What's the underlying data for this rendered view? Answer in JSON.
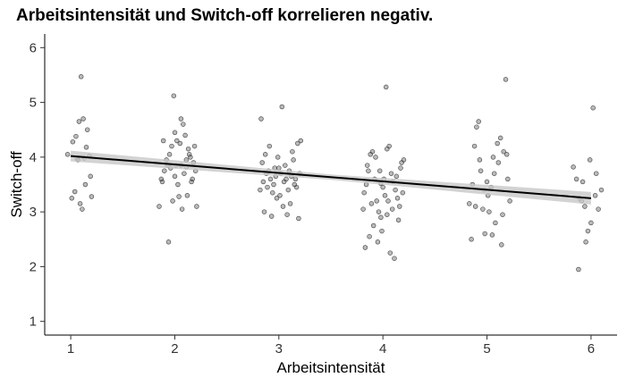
{
  "chart_data": {
    "type": "scatter",
    "title": "Arbeitsintensität und Switch-off korrelieren negativ.",
    "xlabel": "Arbeitsintensität",
    "ylabel": "Switch-off",
    "xlim": [
      0.75,
      6.25
    ],
    "ylim": [
      0.75,
      6.25
    ],
    "x_ticks": [
      1,
      2,
      3,
      4,
      5,
      6
    ],
    "y_ticks": [
      1,
      2,
      3,
      4,
      5,
      6
    ],
    "grid": false,
    "point_color": "#3a3a3a",
    "regression_line": {
      "x": [
        1,
        6
      ],
      "y": [
        4.02,
        3.25
      ],
      "color": "#000000",
      "band_color": "#c8c8c8"
    },
    "series": [
      {
        "points": [
          [
            0.97,
            4.05
          ],
          [
            1.02,
            4.28
          ],
          [
            1.05,
            4.38
          ],
          [
            1.08,
            4.65
          ],
          [
            1.12,
            4.7
          ],
          [
            1.16,
            4.5
          ],
          [
            1.1,
            5.47
          ],
          [
            1.04,
            3.37
          ],
          [
            1.07,
            3.95
          ],
          [
            1.13,
            3.98
          ],
          [
            1.18,
            4.02
          ],
          [
            1.01,
            3.25
          ],
          [
            1.14,
            3.5
          ],
          [
            1.19,
            3.65
          ],
          [
            1.11,
            3.05
          ],
          [
            1.2,
            3.28
          ],
          [
            1.09,
            3.15
          ],
          [
            1.06,
            3.98
          ],
          [
            1.15,
            4.18
          ],
          [
            1.85,
            3.1
          ],
          [
            1.88,
            3.55
          ],
          [
            1.9,
            3.75
          ],
          [
            1.93,
            3.85
          ],
          [
            1.95,
            4.05
          ],
          [
            1.97,
            4.2
          ],
          [
            2.0,
            4.45
          ],
          [
            2.02,
            4.3
          ],
          [
            2.05,
            4.25
          ],
          [
            2.08,
            4.6
          ],
          [
            2.1,
            4.4
          ],
          [
            2.13,
            4.15
          ],
          [
            2.15,
            4.0
          ],
          [
            2.18,
            3.9
          ],
          [
            2.2,
            3.75
          ],
          [
            1.87,
            3.6
          ],
          [
            1.92,
            3.95
          ],
          [
            1.96,
            3.8
          ],
          [
            2.0,
            3.65
          ],
          [
            2.03,
            3.5
          ],
          [
            2.06,
            3.85
          ],
          [
            2.09,
            3.7
          ],
          [
            2.12,
            3.3
          ],
          [
            2.16,
            3.55
          ],
          [
            2.19,
            4.2
          ],
          [
            1.99,
            5.12
          ],
          [
            1.94,
            2.45
          ],
          [
            2.04,
            3.28
          ],
          [
            2.07,
            3.05
          ],
          [
            2.11,
            3.95
          ],
          [
            2.14,
            4.05
          ],
          [
            2.17,
            3.6
          ],
          [
            1.89,
            4.3
          ],
          [
            2.01,
            3.85
          ],
          [
            2.21,
            3.1
          ],
          [
            2.06,
            4.7
          ],
          [
            1.98,
            3.2
          ],
          [
            2.11,
            3.82
          ],
          [
            2.82,
            3.4
          ],
          [
            2.85,
            3.55
          ],
          [
            2.88,
            3.7
          ],
          [
            2.9,
            3.75
          ],
          [
            2.92,
            3.6
          ],
          [
            2.95,
            3.5
          ],
          [
            2.97,
            3.65
          ],
          [
            3.0,
            3.8
          ],
          [
            3.02,
            3.7
          ],
          [
            3.05,
            3.55
          ],
          [
            3.07,
            3.6
          ],
          [
            3.1,
            3.75
          ],
          [
            3.12,
            3.65
          ],
          [
            3.15,
            3.5
          ],
          [
            3.17,
            3.45
          ],
          [
            3.2,
            3.7
          ],
          [
            2.84,
            3.9
          ],
          [
            2.87,
            4.05
          ],
          [
            2.91,
            4.2
          ],
          [
            2.94,
            3.35
          ],
          [
            2.98,
            3.25
          ],
          [
            3.01,
            3.3
          ],
          [
            3.04,
            3.1
          ],
          [
            3.08,
            2.95
          ],
          [
            3.11,
            3.15
          ],
          [
            3.14,
            3.95
          ],
          [
            3.18,
            4.25
          ],
          [
            3.21,
            4.3
          ],
          [
            2.86,
            3.0
          ],
          [
            2.93,
            2.92
          ],
          [
            3.03,
            4.92
          ],
          [
            2.83,
            4.7
          ],
          [
            3.06,
            3.85
          ],
          [
            3.13,
            4.1
          ],
          [
            2.89,
            3.45
          ],
          [
            2.96,
            3.8
          ],
          [
            3.09,
            3.4
          ],
          [
            3.16,
            3.6
          ],
          [
            2.99,
            4.0
          ],
          [
            3.19,
            2.88
          ],
          [
            3.82,
            3.35
          ],
          [
            3.84,
            3.5
          ],
          [
            3.86,
            3.75
          ],
          [
            3.88,
            4.05
          ],
          [
            3.9,
            4.1
          ],
          [
            3.92,
            3.6
          ],
          [
            3.94,
            3.2
          ],
          [
            3.96,
            3.0
          ],
          [
            3.98,
            2.9
          ],
          [
            4.0,
            3.45
          ],
          [
            4.02,
            3.3
          ],
          [
            4.04,
            4.15
          ],
          [
            4.06,
            4.2
          ],
          [
            4.08,
            3.7
          ],
          [
            4.1,
            3.55
          ],
          [
            4.12,
            3.4
          ],
          [
            4.14,
            3.25
          ],
          [
            4.16,
            3.1
          ],
          [
            4.18,
            3.9
          ],
          [
            4.2,
            3.95
          ],
          [
            3.83,
            2.35
          ],
          [
            3.87,
            2.55
          ],
          [
            3.91,
            2.75
          ],
          [
            3.95,
            2.45
          ],
          [
            3.99,
            2.65
          ],
          [
            4.03,
            5.28
          ],
          [
            4.07,
            2.25
          ],
          [
            4.11,
            2.15
          ],
          [
            4.15,
            2.85
          ],
          [
            3.85,
            3.85
          ],
          [
            3.89,
            3.15
          ],
          [
            3.93,
            4.0
          ],
          [
            3.97,
            3.75
          ],
          [
            4.01,
            3.6
          ],
          [
            4.05,
            3.2
          ],
          [
            4.09,
            3.05
          ],
          [
            4.13,
            3.65
          ],
          [
            4.17,
            3.8
          ],
          [
            3.81,
            3.05
          ],
          [
            4.19,
            3.35
          ],
          [
            4.04,
            2.95
          ],
          [
            3.98,
            3.52
          ],
          [
            4.83,
            3.15
          ],
          [
            4.86,
            3.5
          ],
          [
            4.88,
            4.2
          ],
          [
            4.9,
            4.55
          ],
          [
            4.93,
            3.95
          ],
          [
            4.96,
            3.05
          ],
          [
            4.98,
            2.6
          ],
          [
            5.01,
            3.3
          ],
          [
            5.04,
            3.45
          ],
          [
            5.07,
            3.7
          ],
          [
            5.1,
            4.25
          ],
          [
            5.13,
            4.35
          ],
          [
            5.16,
            4.1
          ],
          [
            5.19,
            4.05
          ],
          [
            5.22,
            3.2
          ],
          [
            5.02,
            3.0
          ],
          [
            5.08,
            2.8
          ],
          [
            5.14,
            2.4
          ],
          [
            4.85,
            2.5
          ],
          [
            5.18,
            5.42
          ],
          [
            4.92,
            4.65
          ],
          [
            5.05,
            2.58
          ],
          [
            5.11,
            3.9
          ],
          [
            4.97,
            3.4
          ],
          [
            5.2,
            3.6
          ],
          [
            4.89,
            3.1
          ],
          [
            5.0,
            3.55
          ],
          [
            5.15,
            2.95
          ],
          [
            5.06,
            4.0
          ],
          [
            4.94,
            3.75
          ],
          [
            5.83,
            3.82
          ],
          [
            5.86,
            3.6
          ],
          [
            5.89,
            3.25
          ],
          [
            5.92,
            3.55
          ],
          [
            5.95,
            2.45
          ],
          [
            5.97,
            2.65
          ],
          [
            5.99,
            3.95
          ],
          [
            6.02,
            4.9
          ],
          [
            6.05,
            3.7
          ],
          [
            6.07,
            3.05
          ],
          [
            6.1,
            3.4
          ],
          [
            5.88,
            1.95
          ],
          [
            5.94,
            3.1
          ],
          [
            6.0,
            2.8
          ],
          [
            6.04,
            3.3
          ],
          [
            5.91,
            3.2
          ]
        ]
      }
    ]
  }
}
